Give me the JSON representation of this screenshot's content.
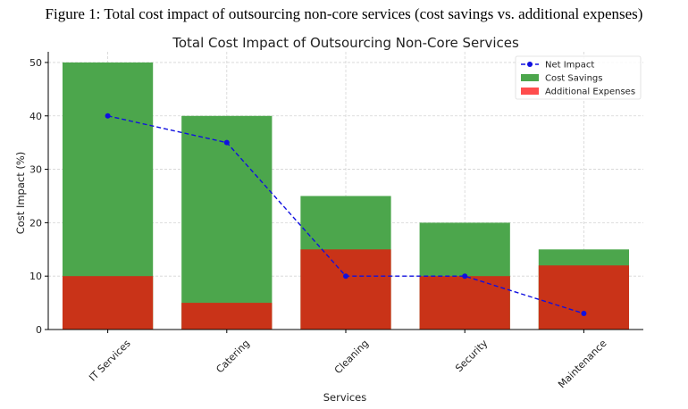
{
  "figure_caption": "Figure 1: Total cost impact of outsourcing non-core services (cost savings vs. additional expenses)",
  "chart_data": {
    "type": "bar",
    "title": "Total Cost Impact of Outsourcing Non-Core Services",
    "xlabel": "Services",
    "ylabel": "Cost Impact (%)",
    "categories": [
      "IT Services",
      "Catering",
      "Cleaning",
      "Security",
      "Maintenance"
    ],
    "ylim": [
      0,
      52
    ],
    "yticks": [
      0,
      10,
      20,
      30,
      40,
      50
    ],
    "grid": true,
    "legend_position": "top-right",
    "series": [
      {
        "name": "Net Impact",
        "kind": "line",
        "style": "dashed",
        "marker": "circle",
        "color": "#1010e0",
        "values": [
          40,
          35,
          10,
          10,
          3
        ]
      },
      {
        "name": "Cost Savings",
        "kind": "bar",
        "color": "#4ca64c",
        "values": [
          50,
          40,
          25,
          20,
          15
        ]
      },
      {
        "name": "Additional Expenses",
        "kind": "bar",
        "color": "#c93318",
        "legend_color": "#ff4d4d",
        "values": [
          10,
          5,
          15,
          10,
          12
        ]
      }
    ]
  }
}
